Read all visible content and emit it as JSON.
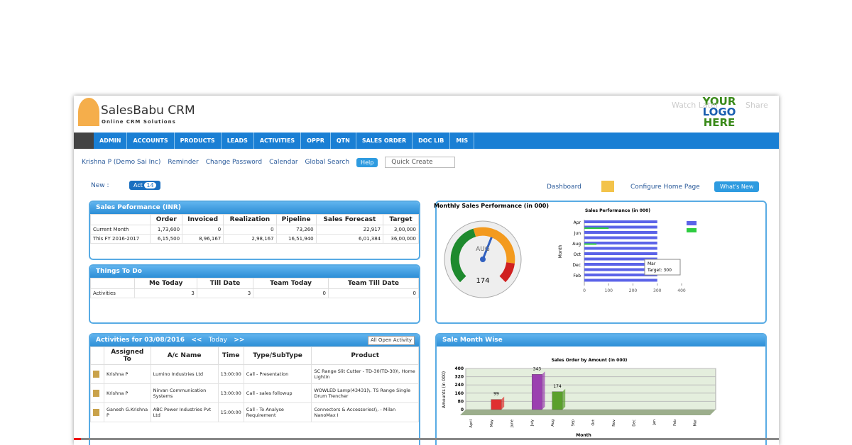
{
  "header": {
    "logo": "SalesBabu CRM",
    "tagline": "Online CRM Solutions",
    "brand_logo": [
      "YOUR",
      "LOGO",
      "HERE"
    ],
    "video_actions": [
      "Watch Later",
      "Share"
    ]
  },
  "nav": [
    "ADMIN",
    "ACCOUNTS",
    "PRODUCTS",
    "LEADS",
    "ACTIVITIES",
    "OPPR",
    "QTN",
    "SALES ORDER",
    "DOC LIB",
    "MIS"
  ],
  "toolbar": {
    "user": "Krishna P (Demo Sai Inc)",
    "links": [
      "Reminder",
      "Change Password",
      "Calendar",
      "Global Search"
    ],
    "help": "Help",
    "quick_create": "Quick Create"
  },
  "subbar": {
    "new": "New :",
    "act": "Act",
    "act_count": "14",
    "dashboard": "Dashboard",
    "configure": "Configure Home Page",
    "whats_new": "What's New"
  },
  "sales_performance": {
    "title": "Sales Peformance (INR)",
    "columns": [
      "Order",
      "Invoiced",
      "Realization",
      "Pipeline",
      "Sales Forecast",
      "Target"
    ],
    "rows": [
      [
        "Current Month",
        "1,73,600",
        "0",
        "0",
        "73,260",
        "22,917",
        "3,00,000"
      ],
      [
        "This FY 2016-2017",
        "6,15,500",
        "8,96,167",
        "2,98,167",
        "16,51,940",
        "6,01,384",
        "36,00,000"
      ]
    ]
  },
  "things_to_do": {
    "title": "Things To Do",
    "columns": [
      "Me Today",
      "Till Date",
      "Team Today",
      "Team Till Date"
    ],
    "rows": [
      [
        "Activities",
        "3",
        "3",
        "0",
        "0"
      ]
    ]
  },
  "activities": {
    "title": "Activities for 03/08/2016",
    "prev": "<<",
    "today": "Today",
    "next": ">>",
    "button": "All Open Activity",
    "columns": [
      "Assigned To",
      "A/c Name",
      "Time",
      "Type/SubType",
      "Product"
    ],
    "rows": [
      [
        "Krishna P",
        "Lumino Industries Ltd",
        "13:00:00",
        "Call - Presentation",
        "SC Range Slit Cutter - TD-30(TD-30)\\. Home Lightin"
      ],
      [
        "Krishna P",
        "Nirvan Communication Systems",
        "13:00:00",
        "Call - sales followup",
        "WOWLED Lamp(43431)\\. TS Range Single Drum Trencher"
      ],
      [
        "Ganesh G.Krishna P",
        "ABC Power Industries Pvt Ltd",
        "15:00:00",
        "Call - To Analyse Requirement",
        "Connectors & Accessories(\\. - Milan NanoMax I"
      ]
    ]
  },
  "gauge": {
    "type": "gauge",
    "title": "Monthly Sales Performance (in 000)",
    "label": "AUG",
    "value": 174,
    "range": [
      0,
      300
    ]
  },
  "bar_chart": {
    "type": "bar",
    "orientation": "horizontal",
    "title": "Sales Performance (in 000)",
    "y_label": "Month",
    "categories": [
      "Apr",
      null,
      "Jun",
      null,
      "Aug",
      null,
      "Oct",
      null,
      "Dec",
      null,
      "Feb",
      null
    ],
    "series": [
      {
        "color": "#5b63e8",
        "values": [
          300,
          300,
          300,
          300,
          300,
          300,
          300,
          300,
          300,
          300,
          300,
          300
        ]
      },
      {
        "color": "#2ecc40",
        "values": [
          0,
          100,
          0,
          0,
          50,
          0,
          0,
          0,
          0,
          0,
          0,
          0
        ]
      }
    ],
    "xlim": [
      0,
      400
    ],
    "xticks": [
      0,
      100,
      200,
      300,
      400
    ],
    "tooltip": [
      "Mar",
      "Target: 300"
    ]
  },
  "sale_month_wise": {
    "title": "Sale Month Wise"
  },
  "column_chart": {
    "type": "bar",
    "title": "Sales Order by Amount (in 000)",
    "y_label": "Amounts (in 000)",
    "x_label": "Month",
    "categories": [
      "April",
      "May",
      "June",
      "July",
      "Aug",
      "Sep",
      "Oct",
      "Nov",
      "Dec",
      "Jan",
      "Feb",
      "Mar"
    ],
    "values": [
      0,
      99,
      0,
      343,
      174,
      0,
      0,
      0,
      0,
      0,
      0,
      0
    ],
    "colors": [
      "#e03030",
      "#e03030",
      "#e03030",
      "#9b3fb0",
      "#5aa02c",
      "#5aa02c",
      "#5aa02c",
      "#5aa02c",
      "#5aa02c",
      "#5aa02c",
      "#5aa02c",
      "#5aa02c"
    ],
    "ylim": [
      0,
      400
    ],
    "yticks": [
      0,
      80,
      160,
      240,
      320,
      400
    ]
  }
}
